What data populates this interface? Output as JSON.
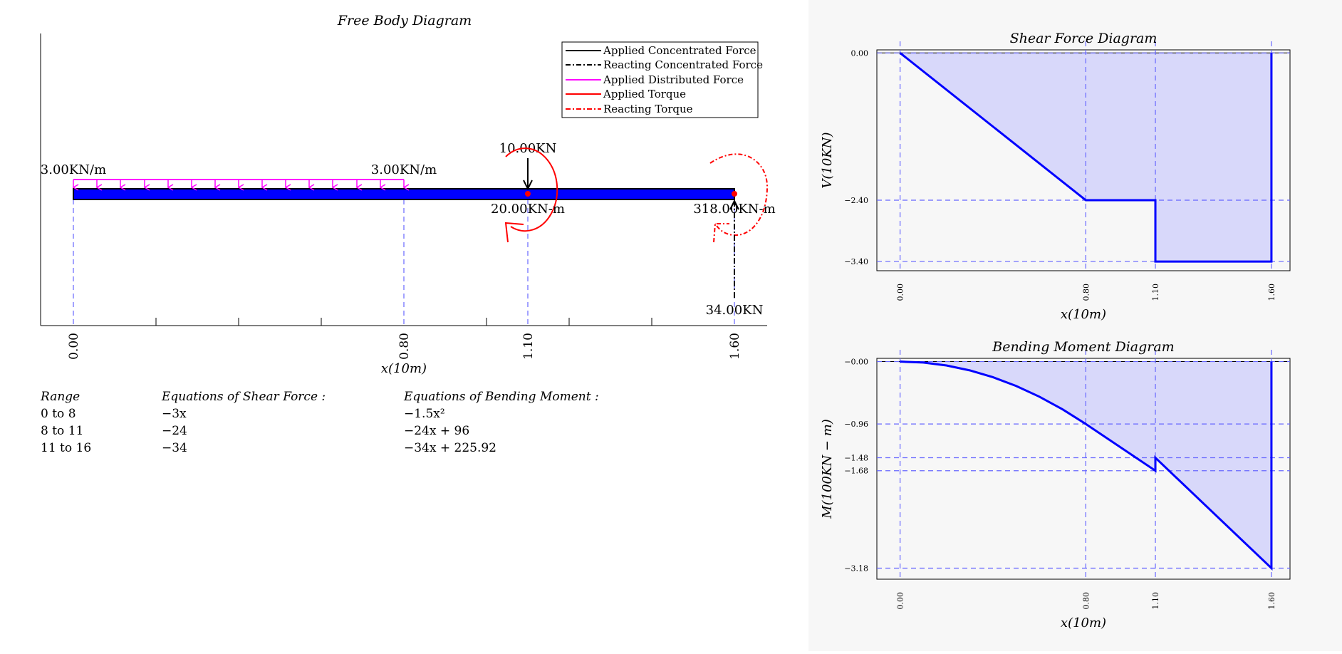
{
  "fbd": {
    "title": "Free Body Diagram",
    "xlabel": "x(10m)",
    "ticks": [
      "0.00",
      "0.80",
      "1.10",
      "1.60"
    ],
    "legend": [
      {
        "label": "Applied Concentrated Force",
        "color": "#000000",
        "style": "solid"
      },
      {
        "label": "Reacting Concentrated Force",
        "color": "#000000",
        "style": "dashdot"
      },
      {
        "label": "Applied Distributed Force",
        "color": "#ff00ff",
        "style": "solid"
      },
      {
        "label": "Applied Torque",
        "color": "#ff0000",
        "style": "solid"
      },
      {
        "label": "Reacting Torque",
        "color": "#ff0000",
        "style": "dashdot"
      }
    ],
    "labels": {
      "dist_left": "3.00KN/m",
      "dist_right": "3.00KN/m",
      "point_force": "10.00KN",
      "applied_torque": "20.00KN-m",
      "reacting_torque": "318.00KN-m",
      "reaction_force": "34.00KN"
    },
    "colors": {
      "beam": "#0000ff",
      "guide": "#6666ff",
      "distributed": "#ff00ff",
      "torque": "#ff0000"
    }
  },
  "equations": {
    "headers": [
      "Range",
      "Equations of Shear Force :",
      "Equations of Bending Moment :"
    ],
    "rows": [
      {
        "range": "0 to 8",
        "shear": "−3x",
        "moment": "−1.5x²"
      },
      {
        "range": "8 to 11",
        "shear": "−24",
        "moment": "−24x + 96"
      },
      {
        "range": "11 to 16",
        "shear": "−34",
        "moment": "−34x + 225.92"
      }
    ]
  },
  "chart_data": [
    {
      "type": "area",
      "title": "Shear Force Diagram",
      "xlabel": "x(10m)",
      "ylabel": "V(10KN)",
      "x_ticks": [
        "0.00",
        "0.80",
        "1.10",
        "1.60"
      ],
      "y_ticks": [
        "0.00",
        "−2.40",
        "−3.40"
      ],
      "xlim": [
        -0.1,
        1.68
      ],
      "ylim": [
        -3.55,
        0.05
      ],
      "x": [
        0.0,
        0.8,
        0.8,
        1.1,
        1.1,
        1.6,
        1.6
      ],
      "y": [
        0.0,
        -2.4,
        -2.4,
        -2.4,
        -3.4,
        -3.4,
        0.0
      ],
      "grid_x": [
        0.0,
        0.8,
        1.1,
        1.6
      ],
      "grid_y": [
        0.0,
        -2.4,
        -3.4
      ],
      "line_color": "#0000ff",
      "fill_color": "#d8d8fa"
    },
    {
      "type": "area",
      "title": "Bending Moment Diagram",
      "xlabel": "x(10m)",
      "ylabel": "M(100KN − m)",
      "x_ticks": [
        "0.00",
        "0.80",
        "1.10",
        "1.60"
      ],
      "y_ticks": [
        "−0.00",
        "−0.96",
        "−1.48",
        "−1.68",
        "−3.18"
      ],
      "xlim": [
        -0.1,
        1.68
      ],
      "ylim": [
        -3.35,
        0.05
      ],
      "x": [
        0.0,
        0.1,
        0.2,
        0.3,
        0.4,
        0.5,
        0.6,
        0.7,
        0.8,
        1.1,
        1.1,
        1.6,
        1.6
      ],
      "y": [
        0.0,
        -0.015,
        -0.06,
        -0.135,
        -0.24,
        -0.375,
        -0.54,
        -0.735,
        -0.96,
        -1.68,
        -1.48,
        -3.18,
        0.0
      ],
      "grid_x": [
        0.0,
        0.8,
        1.1,
        1.6
      ],
      "grid_y": [
        0.0,
        -0.96,
        -1.48,
        -1.68,
        -3.18
      ],
      "line_color": "#0000ff",
      "fill_color": "#d8d8fa"
    }
  ]
}
